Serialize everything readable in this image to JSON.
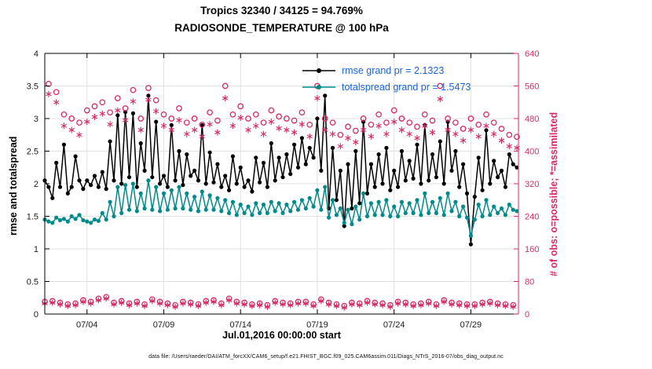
{
  "caption": "data file: /Users/raeder/DAI/ATM_forcXX/CAM6_setup/f.e21.FHIST_BGC.f09_025.CAM6assim.011/Diags_NTrS_2016-07/obs_diag_output.nc",
  "colors": {
    "rmse": "#000000",
    "totalspread": "#008b8b",
    "obs_axis": "#d62a66",
    "legend_text": "#1b63d6",
    "grid": "#e2e2e2"
  },
  "legend": {
    "text_color": "#1b63d6",
    "entries": [
      {
        "label": "rmse grand pr = 2.1323",
        "color": "#000000"
      },
      {
        "label": "totalspread grand pr = 1.5473",
        "color": "#008b8b"
      }
    ]
  },
  "chart_data": {
    "type": "line",
    "title": "Tropics 32340 / 34125 = 94.769%",
    "subtitle": "RADIOSONDE_TEMPERATURE @ 100 hPa",
    "xlabel": "Jul.01,2016 00:00:00 start",
    "ylabel_left": "rmse and totalspread",
    "ylabel_right": "# of obs: o=possible; *=assimilated",
    "ylim_left": [
      0,
      4
    ],
    "ylim_right": [
      0,
      640
    ],
    "xlim_days": [
      1.25,
      32.1
    ],
    "yticks_left": [
      0,
      0.5,
      1,
      1.5,
      2,
      2.5,
      3,
      3.5,
      4
    ],
    "yticks_right": [
      0,
      80,
      160,
      240,
      320,
      400,
      480,
      560,
      640
    ],
    "xtick_days": [
      4,
      9,
      14,
      19,
      24,
      29
    ],
    "xtick_labels": [
      "07/04",
      "07/09",
      "07/14",
      "07/19",
      "07/24",
      "07/29"
    ],
    "grid": true,
    "legend_position": "top-center-right",
    "x_days": [
      1.25,
      1.5,
      1.75,
      2,
      2.25,
      2.5,
      2.75,
      3,
      3.25,
      3.5,
      3.75,
      4,
      4.25,
      4.5,
      4.75,
      5,
      5.25,
      5.5,
      5.75,
      6,
      6.25,
      6.5,
      6.75,
      7,
      7.25,
      7.5,
      7.75,
      8,
      8.25,
      8.5,
      8.75,
      9,
      9.25,
      9.5,
      9.75,
      10,
      10.25,
      10.5,
      10.75,
      11,
      11.25,
      11.5,
      11.75,
      12,
      12.25,
      12.5,
      12.75,
      13,
      13.25,
      13.5,
      13.75,
      14,
      14.25,
      14.5,
      14.75,
      15,
      15.25,
      15.5,
      15.75,
      16,
      16.25,
      16.5,
      16.75,
      17,
      17.25,
      17.5,
      17.75,
      18,
      18.25,
      18.5,
      18.75,
      19,
      19.25,
      19.5,
      19.75,
      20,
      20.25,
      20.5,
      20.75,
      21,
      21.25,
      21.5,
      21.75,
      22,
      22.25,
      22.5,
      22.75,
      23,
      23.25,
      23.5,
      23.75,
      24,
      24.25,
      24.5,
      24.75,
      25,
      25.25,
      25.5,
      25.75,
      26,
      26.25,
      26.5,
      26.75,
      27,
      27.25,
      27.5,
      27.75,
      28,
      28.25,
      28.5,
      28.75,
      29,
      29.25,
      29.5,
      29.75,
      30,
      30.25,
      30.5,
      30.75,
      31,
      31.25,
      31.5,
      31.75,
      32
    ],
    "series": [
      {
        "name": "rmse",
        "axis": "left",
        "draw_line": true,
        "marker": "filled-circle",
        "color": "#000000",
        "grand_mean_prior": 2.1323,
        "values": [
          2.05,
          1.95,
          1.78,
          2.32,
          1.95,
          2.6,
          1.85,
          1.95,
          2.42,
          2.05,
          1.92,
          2.05,
          1.98,
          2.12,
          1.95,
          2.18,
          1.92,
          2.65,
          2.05,
          3.05,
          2.0,
          3.1,
          2.1,
          3.08,
          1.95,
          2.62,
          2.2,
          3.35,
          2.1,
          2.95,
          2.0,
          2.12,
          1.95,
          2.9,
          2.05,
          2.5,
          1.98,
          2.45,
          2.12,
          2.2,
          2.05,
          2.9,
          2.0,
          2.48,
          2.02,
          2.3,
          1.95,
          2.12,
          1.9,
          2.42,
          2.0,
          2.25,
          1.95,
          2.05,
          1.88,
          2.4,
          2.02,
          2.32,
          1.95,
          2.62,
          2.05,
          2.4,
          2.1,
          2.45,
          2.15,
          2.6,
          2.25,
          2.7,
          2.3,
          2.55,
          2.4,
          3.0,
          2.2,
          3.35,
          1.62,
          2.55,
          1.75,
          2.2,
          1.35,
          2.3,
          1.62,
          2.5,
          1.7,
          2.95,
          1.85,
          2.3,
          1.95,
          2.45,
          2.0,
          2.55,
          1.9,
          2.2,
          1.95,
          2.5,
          2.05,
          2.35,
          2.08,
          2.6,
          2.0,
          2.9,
          2.05,
          2.45,
          2.1,
          2.65,
          2.0,
          2.95,
          2.2,
          2.5,
          1.95,
          2.3,
          1.85,
          1.07,
          1.8,
          2.4,
          1.9,
          2.82,
          2.0,
          2.35,
          2.1,
          2.2,
          1.95,
          2.45,
          2.3,
          2.25
        ]
      },
      {
        "name": "totalspread",
        "axis": "left",
        "draw_line": true,
        "marker": "filled-circle",
        "color": "#008b8b",
        "grand_mean_prior": 1.5473,
        "values": [
          1.45,
          1.42,
          1.4,
          1.48,
          1.44,
          1.46,
          1.42,
          1.5,
          1.46,
          1.52,
          1.44,
          1.42,
          1.4,
          1.45,
          1.43,
          1.55,
          1.45,
          1.72,
          1.5,
          1.95,
          1.55,
          1.98,
          1.6,
          2.0,
          1.58,
          1.85,
          1.62,
          2.05,
          1.6,
          1.95,
          1.58,
          1.85,
          1.6,
          1.9,
          1.62,
          1.95,
          1.62,
          1.85,
          1.6,
          1.8,
          1.58,
          1.88,
          1.6,
          1.82,
          1.6,
          1.78,
          1.58,
          1.75,
          1.55,
          1.72,
          1.52,
          1.68,
          1.55,
          1.65,
          1.52,
          1.7,
          1.55,
          1.68,
          1.55,
          1.72,
          1.58,
          1.7,
          1.55,
          1.68,
          1.58,
          1.72,
          1.6,
          1.75,
          1.62,
          1.78,
          1.65,
          1.9,
          1.6,
          1.95,
          1.48,
          1.75,
          1.52,
          1.62,
          1.4,
          1.6,
          1.38,
          1.65,
          1.45,
          1.85,
          1.5,
          1.7,
          1.52,
          1.72,
          1.52,
          1.75,
          1.5,
          1.65,
          1.5,
          1.72,
          1.55,
          1.7,
          1.55,
          1.75,
          1.52,
          1.85,
          1.55,
          1.72,
          1.55,
          1.78,
          1.52,
          1.85,
          1.58,
          1.72,
          1.5,
          1.65,
          1.48,
          1.2,
          1.45,
          1.68,
          1.5,
          1.75,
          1.52,
          1.65,
          1.55,
          1.62,
          1.52,
          1.68,
          1.6,
          1.58
        ]
      },
      {
        "name": "possible_obs",
        "axis": "right",
        "draw_line": false,
        "marker": "open-circle",
        "color": "#d62a66",
        "values": [
          30,
          565,
          32,
          545,
          28,
          490,
          24,
          480,
          26,
          470,
          34,
          500,
          30,
          510,
          38,
          520,
          42,
          495,
          28,
          530,
          32,
          505,
          26,
          550,
          30,
          480,
          24,
          555,
          36,
          525,
          30,
          490,
          26,
          480,
          22,
          505,
          30,
          470,
          28,
          480,
          24,
          465,
          32,
          495,
          34,
          475,
          26,
          560,
          38,
          490,
          30,
          510,
          28,
          480,
          24,
          490,
          26,
          470,
          22,
          500,
          32,
          485,
          28,
          480,
          26,
          475,
          30,
          495,
          30,
          465,
          24,
          560,
          36,
          480,
          28,
          470,
          24,
          440,
          20,
          460,
          28,
          450,
          26,
          480,
          32,
          465,
          28,
          490,
          26,
          470,
          22,
          500,
          30,
          480,
          28,
          470,
          24,
          460,
          26,
          490,
          30,
          475,
          24,
          560,
          34,
          480,
          28,
          470,
          26,
          455,
          24,
          480,
          24,
          465,
          28,
          490,
          30,
          470,
          26,
          455,
          24,
          440,
          22,
          435
        ]
      },
      {
        "name": "assimilated_obs",
        "axis": "right",
        "draw_line": false,
        "marker": "asterisk",
        "color": "#d62a66",
        "values": [
          26,
          540,
          28,
          520,
          24,
          462,
          20,
          452,
          22,
          440,
          30,
          472,
          26,
          484,
          34,
          492,
          38,
          466,
          24,
          500,
          28,
          476,
          22,
          522,
          26,
          452,
          20,
          526,
          32,
          498,
          26,
          462,
          22,
          452,
          18,
          476,
          26,
          442,
          24,
          452,
          20,
          436,
          28,
          466,
          30,
          446,
          22,
          530,
          34,
          462,
          26,
          482,
          24,
          452,
          20,
          462,
          22,
          442,
          18,
          472,
          28,
          456,
          24,
          452,
          22,
          446,
          26,
          466,
          26,
          436,
          20,
          530,
          32,
          452,
          24,
          442,
          20,
          412,
          16,
          432,
          24,
          422,
          22,
          452,
          28,
          436,
          24,
          462,
          22,
          442,
          18,
          472,
          26,
          452,
          24,
          442,
          20,
          432,
          22,
          462,
          26,
          446,
          20,
          528,
          30,
          452,
          24,
          442,
          22,
          426,
          20,
          452,
          20,
          436,
          24,
          462,
          26,
          442,
          22,
          426,
          20,
          412,
          18,
          408
        ]
      }
    ],
    "totals": {
      "possible": 34125,
      "assimilated": 32340,
      "percent_assimilated": "94.769%"
    }
  }
}
